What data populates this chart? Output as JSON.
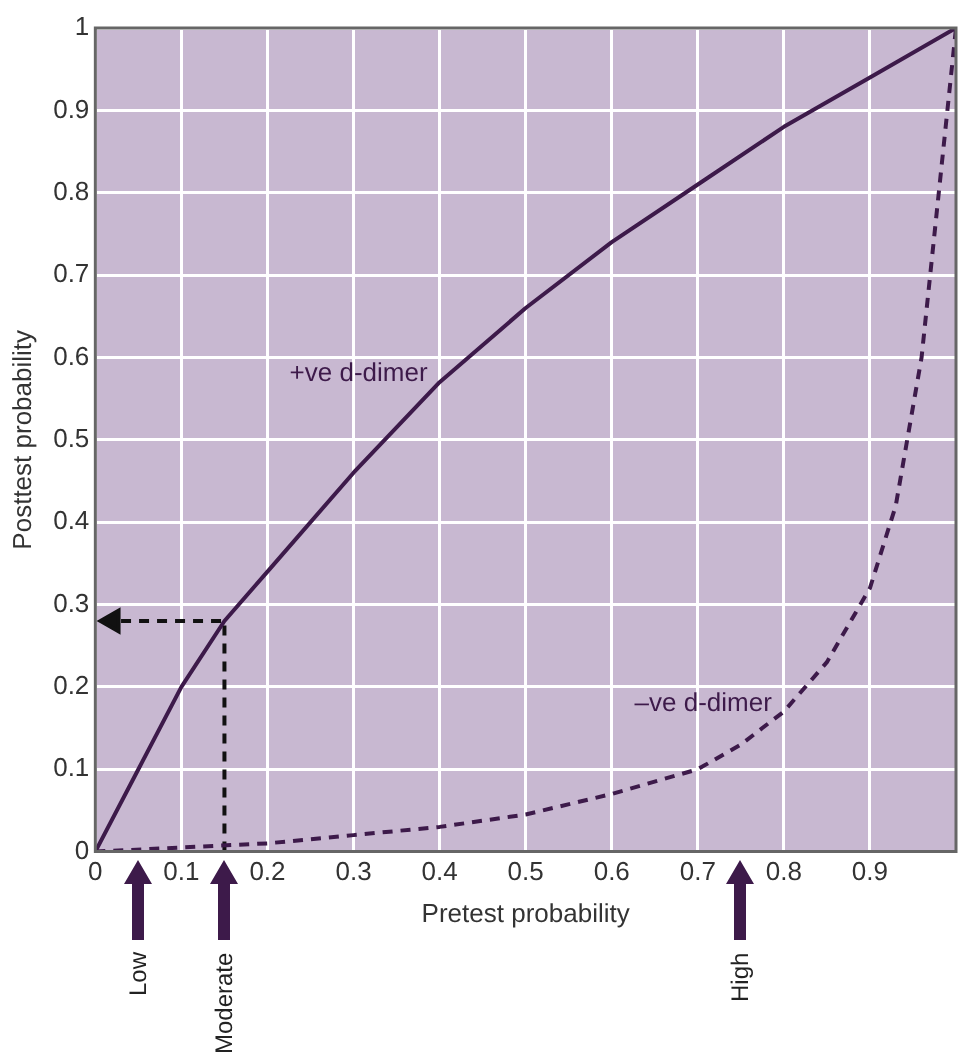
{
  "chart_data": {
    "type": "line",
    "xlabel": "Pretest probability",
    "ylabel": "Posttest probability",
    "xlim": [
      0,
      1
    ],
    "ylim": [
      0,
      1
    ],
    "xticks": [
      0,
      0.1,
      0.2,
      0.3,
      0.4,
      0.5,
      0.6,
      0.7,
      0.8,
      0.9
    ],
    "yticks": [
      0,
      0.1,
      0.2,
      0.3,
      0.4,
      0.5,
      0.6,
      0.7,
      0.8,
      0.9,
      1
    ],
    "grid": true,
    "marker": "none",
    "series": [
      {
        "name": "+ve d-dimer",
        "color": "#3d1a4a",
        "line_style": "solid",
        "x": [
          0,
          0.05,
          0.1,
          0.15,
          0.2,
          0.3,
          0.4,
          0.5,
          0.6,
          0.7,
          0.8,
          0.9,
          1
        ],
        "values": [
          0,
          0.1,
          0.2,
          0.28,
          0.34,
          0.46,
          0.57,
          0.66,
          0.74,
          0.81,
          0.88,
          0.94,
          1
        ]
      },
      {
        "name": "–ve d-dimer",
        "color": "#3d1a4a",
        "line_style": "dashed",
        "x": [
          0,
          0.1,
          0.2,
          0.3,
          0.4,
          0.5,
          0.6,
          0.7,
          0.75,
          0.8,
          0.85,
          0.9,
          0.93,
          0.96,
          0.98,
          1
        ],
        "values": [
          0,
          0.005,
          0.01,
          0.02,
          0.03,
          0.045,
          0.07,
          0.1,
          0.13,
          0.17,
          0.23,
          0.32,
          0.42,
          0.6,
          0.8,
          1
        ]
      },
      {
        "color": "#111111",
        "line_style": "dashed",
        "x": [
          0.15,
          0.15,
          0.02
        ],
        "values": [
          0,
          0.28,
          0.28
        ]
      }
    ],
    "annotations": [
      "Low",
      "Moderate",
      "High"
    ]
  }
}
